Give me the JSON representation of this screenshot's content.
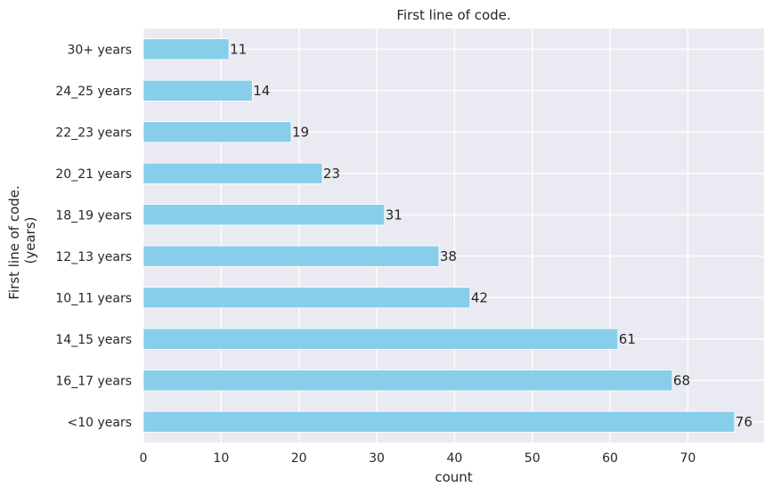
{
  "chart_data": {
    "type": "bar",
    "orientation": "horizontal",
    "title": "First line of code.",
    "xlabel": "count",
    "ylabel_lines": [
      "First line of code.",
      "(years)"
    ],
    "categories": [
      "30+ years",
      "24_25 years",
      "22_23 years",
      "20_21 years",
      "18_19 years",
      "12_13 years",
      "10_11 years",
      "14_15 years",
      "16_17 years",
      "<10 years"
    ],
    "values": [
      11,
      14,
      19,
      23,
      31,
      38,
      42,
      61,
      68,
      76
    ],
    "data_labels": [
      "11",
      "14",
      "19",
      "23",
      "31",
      "38",
      "42",
      "61",
      "68",
      "76"
    ],
    "xlim": [
      0,
      79.8
    ],
    "xticks": [
      0,
      10,
      20,
      30,
      40,
      50,
      60,
      70
    ],
    "xtick_labels": [
      "0",
      "10",
      "20",
      "30",
      "40",
      "50",
      "60",
      "70"
    ],
    "grid": true,
    "colors": {
      "bar": "#87CEEB",
      "background": "#EAEAF2",
      "grid": "#FFFFFF",
      "text": "#262626"
    }
  }
}
